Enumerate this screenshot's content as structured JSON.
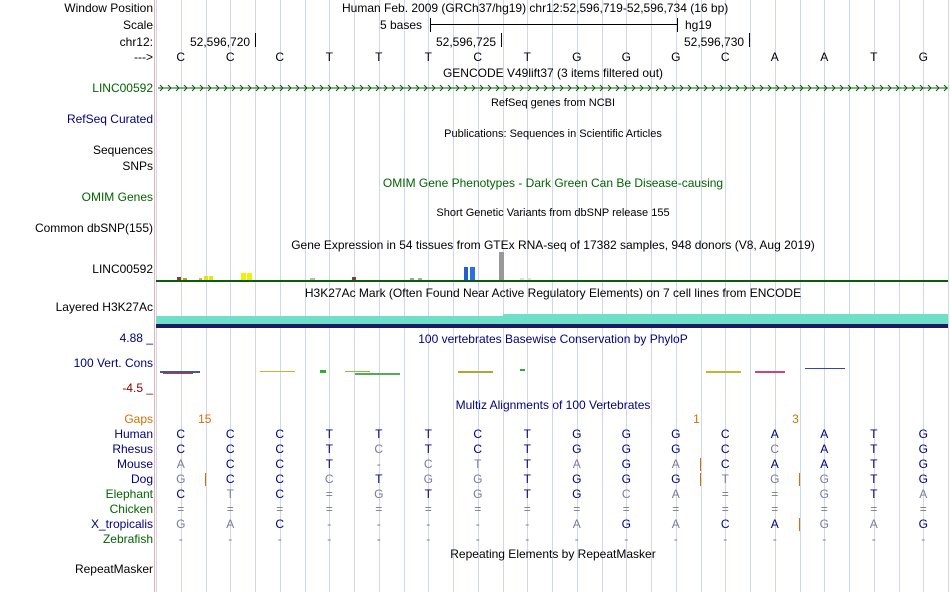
{
  "header": {
    "position_label": "Window Position",
    "position_value": "Human Feb. 2009 (GRCh37/hg19)   chr12:52,596,719-52,596,734 (16 bp)",
    "scale_label": "Scale",
    "scale_text": "5 bases",
    "assembly": "hg19",
    "chrom_label": "chr12:",
    "coords": [
      "52,596,720",
      "52,596,725",
      "52,596,730"
    ],
    "strand_label": "--->"
  },
  "sequence": [
    "C",
    "C",
    "C",
    "T",
    "T",
    "T",
    "C",
    "T",
    "G",
    "G",
    "G",
    "C",
    "A",
    "A",
    "T",
    "G"
  ],
  "tracks": {
    "gencode": {
      "title": "GENCODE V49lift37 (3 items filtered out)",
      "item_label": "LINC00592"
    },
    "refseq": {
      "title": "RefSeq genes from NCBI",
      "label": "RefSeq Curated"
    },
    "publications": {
      "title": "Publications: Sequences in Scientific Articles",
      "label": "Sequences"
    },
    "snps_label": "SNPs",
    "omim": {
      "title": "OMIM Gene Phenotypes - Dark Green Can Be Disease-causing",
      "label": "OMIM Genes"
    },
    "dbsnp": {
      "title": "Short Genetic Variants from dbSNP release 155",
      "label": "Common dbSNP(155)"
    },
    "gtex": {
      "title": "Gene Expression in 54 tissues from GTEx RNA-seq of 17382 samples, 948 donors (V8, Aug 2019)",
      "label": "LINC00592"
    },
    "h3k27ac": {
      "title": "H3K27Ac Mark (Often Found Near Active Regulatory Elements) on 7 cell lines from ENCODE",
      "label": "Layered H3K27Ac"
    },
    "phylop": {
      "title": "100 vertebrates Basewise Conservation by PhyloP",
      "label": "100 Vert. Cons",
      "max": "4.88 _",
      "min": "-4.5 _"
    },
    "multiz": {
      "title": "Multiz Alignments of 100 Vertebrates",
      "gaps_label": "Gaps",
      "gap_counts": [
        {
          "pos": 0,
          "text": "15"
        },
        {
          "pos": 10,
          "text": "1"
        },
        {
          "pos": 12,
          "text": "3"
        }
      ],
      "species": [
        {
          "name": "Human",
          "color": "#000080",
          "seq": [
            "C",
            "C",
            "C",
            "T",
            "T",
            "T",
            "C",
            "T",
            "G",
            "G",
            "G",
            "C",
            "A",
            "A",
            "T",
            "G"
          ]
        },
        {
          "name": "Rhesus",
          "color": "#000080",
          "seq": [
            "C",
            "C",
            "C",
            "T",
            "C",
            "T",
            "C",
            "T",
            "G",
            "G",
            "G",
            "C",
            "C",
            "A",
            "T",
            "G"
          ]
        },
        {
          "name": "Mouse",
          "color": "#000080",
          "seq": [
            "A",
            "C",
            "C",
            "T",
            "-",
            "C",
            "T",
            "T",
            "A",
            "G",
            "A",
            "C",
            "A",
            "A",
            "T",
            "G"
          ]
        },
        {
          "name": "Dog",
          "color": "#000080",
          "seq": [
            "G",
            "C",
            "C",
            "C",
            "T",
            "G",
            "G",
            "T",
            "G",
            "G",
            "G",
            "T",
            "G",
            "G",
            "T",
            "G"
          ]
        },
        {
          "name": "Elephant",
          "color": "#006400",
          "seq": [
            "C",
            "T",
            "C",
            "=",
            "G",
            "T",
            "G",
            "T",
            "G",
            "C",
            "A",
            "=",
            "=",
            "G",
            "T",
            "A"
          ]
        },
        {
          "name": "Chicken",
          "color": "#006400",
          "seq": [
            "=",
            "=",
            "=",
            "=",
            "=",
            "=",
            "=",
            "=",
            "=",
            "=",
            "=",
            "=",
            "=",
            "=",
            "=",
            "="
          ]
        },
        {
          "name": "X_tropicalis",
          "color": "#000080",
          "seq": [
            "G",
            "A",
            "C",
            "-",
            "-",
            "-",
            "-",
            "-",
            "A",
            "G",
            "A",
            "C",
            "A",
            "G",
            "A",
            "G"
          ]
        },
        {
          "name": "Zebrafish",
          "color": "#006400",
          "seq": [
            "-",
            "-",
            "-",
            "-",
            "-",
            "-",
            "-",
            "-",
            "-",
            "-",
            "-",
            "-",
            "-",
            "-",
            "-",
            "-"
          ]
        }
      ]
    },
    "repeatmasker": {
      "title": "Repeating Elements by RepeatMasker",
      "label": "RepeatMasker"
    }
  },
  "colors": {
    "track_label_blue": "#000080",
    "track_label_green": "#006400",
    "multiz_title": "#000080",
    "phylop_max": "#000080",
    "phylop_min": "#8b0000",
    "gaps": "#d07000",
    "h3k27ac": "#6fe0c8"
  }
}
